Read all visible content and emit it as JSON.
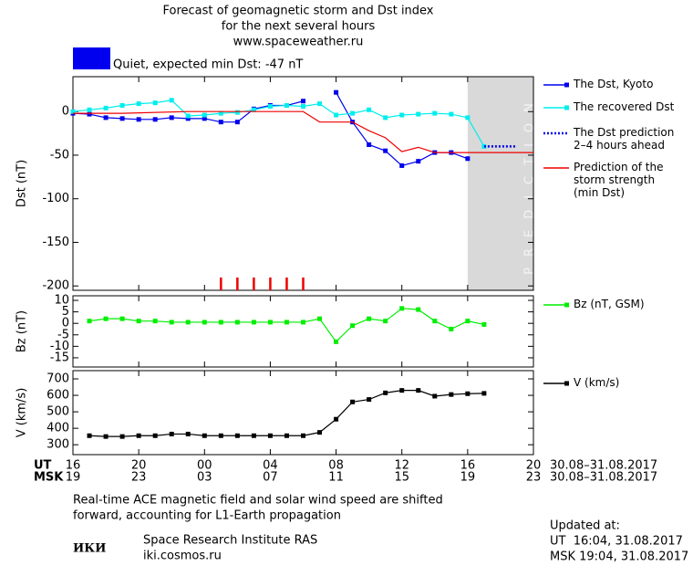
{
  "header": {
    "title_lines": [
      "Forecast of geomagnetic storm and Dst index",
      "for the next several hours",
      "www.spaceweather.ru"
    ],
    "status": "Quiet, expected min Dst: -47 nT",
    "status_color": "#0000ee"
  },
  "chart_data": [
    {
      "type": "line",
      "ylabel": "Dst (nT)",
      "xlim": [
        0,
        28
      ],
      "ylim": [
        -205,
        40
      ],
      "yticks": [
        0,
        -50,
        -100,
        -150,
        -200
      ],
      "prediction_zone": [
        24,
        28
      ],
      "prediction_label": "PREDICTION",
      "storm_marks_x": [
        9,
        10,
        11,
        12,
        13,
        14
      ],
      "storm_marks_color": "#ee0000",
      "series": [
        {
          "name": "The Dst, Kyoto",
          "color": "#0000ee",
          "marker": "square",
          "x": [
            0,
            1,
            2,
            3,
            4,
            5,
            6,
            7,
            8,
            9,
            10,
            11,
            12,
            13,
            14,
            15,
            16,
            17,
            18,
            19,
            20,
            21,
            22,
            23,
            24
          ],
          "values": [
            -2,
            -3,
            -7,
            -8,
            -9,
            -9,
            -7,
            -8,
            -8,
            -12,
            -12,
            3,
            7,
            7,
            12,
            null,
            22,
            -12,
            -38,
            -45,
            -62,
            -57,
            -47,
            -47,
            -54
          ]
        },
        {
          "name": "The recovered Dst",
          "color": "#00eeee",
          "marker": "square",
          "x": [
            0,
            1,
            2,
            3,
            4,
            5,
            6,
            7,
            8,
            9,
            10,
            11,
            12,
            13,
            14,
            15,
            16,
            17,
            18,
            19,
            20,
            21,
            22,
            23,
            24,
            25
          ],
          "values": [
            0,
            2,
            4,
            7,
            9,
            10,
            13,
            -5,
            -4,
            -2,
            -1,
            2,
            6,
            7,
            6,
            9,
            -4,
            -2,
            2,
            -7,
            -4,
            -3,
            -2,
            -3,
            -7,
            -40
          ]
        },
        {
          "name": "The Dst prediction\n2–4 hours ahead",
          "color": "#0000ee",
          "dash": "dotted",
          "x": [
            25,
            27
          ],
          "values": [
            -40,
            -40
          ]
        },
        {
          "name": "Prediction of the\nstorm strength\n(min Dst)",
          "color": "#ee0000",
          "x": [
            0,
            3,
            7,
            14,
            15,
            17,
            18,
            19,
            20,
            21,
            22,
            23,
            24,
            28
          ],
          "values": [
            -2,
            -2,
            0,
            0,
            -12,
            -12,
            -22,
            -30,
            -46,
            -41,
            -47,
            -47,
            -47,
            -47
          ]
        }
      ]
    },
    {
      "type": "line",
      "ylabel": "Bz (nT)",
      "xlim": [
        0,
        28
      ],
      "ylim": [
        -19,
        12
      ],
      "yticks": [
        10,
        5,
        0,
        -5,
        -10,
        -15
      ],
      "series": [
        {
          "name": "Bz (nT, GSM)",
          "color": "#00ee00",
          "marker": "square",
          "x": [
            1,
            2,
            3,
            4,
            5,
            6,
            7,
            8,
            9,
            10,
            11,
            12,
            13,
            14,
            15,
            16,
            17,
            18,
            19,
            20,
            21,
            22,
            23,
            24,
            25
          ],
          "values": [
            1,
            2,
            2,
            1,
            1,
            0.5,
            0.5,
            0.5,
            0.5,
            0.5,
            0.5,
            0.5,
            0.5,
            0.5,
            2,
            -8,
            -1,
            2,
            1,
            6.5,
            6,
            1,
            -2.5,
            1,
            -0.5
          ]
        }
      ]
    },
    {
      "type": "line",
      "ylabel": "V (km/s)",
      "xlim": [
        0,
        28
      ],
      "ylim": [
        240,
        750
      ],
      "yticks": [
        700,
        600,
        500,
        400,
        300
      ],
      "series": [
        {
          "name": "V (km/s)",
          "color": "#000000",
          "marker": "square",
          "x": [
            1,
            2,
            3,
            4,
            5,
            6,
            7,
            8,
            9,
            10,
            11,
            12,
            13,
            14,
            15,
            16,
            17,
            18,
            19,
            20,
            21,
            22,
            23,
            24,
            25
          ],
          "values": [
            355,
            350,
            350,
            355,
            355,
            365,
            365,
            355,
            355,
            355,
            355,
            355,
            355,
            355,
            375,
            455,
            560,
            575,
            615,
            630,
            630,
            595,
            605,
            610,
            612
          ]
        }
      ],
      "xrow_names": [
        "UT",
        "MSK"
      ],
      "date_ranges": [
        "30.08–31.08.2017",
        "30.08–31.08.2017"
      ],
      "xticks": [
        {
          "value": 0,
          "label": "16"
        },
        {
          "value": 4,
          "label": "20"
        },
        {
          "value": 8,
          "label": "00"
        },
        {
          "value": 12,
          "label": "04"
        },
        {
          "value": 16,
          "label": "08"
        },
        {
          "value": 20,
          "label": "12"
        },
        {
          "value": 24,
          "label": "16"
        },
        {
          "value": 28,
          "label": "20"
        }
      ],
      "x2ticks": [
        {
          "value": 0,
          "label": "19"
        },
        {
          "value": 4,
          "label": "23"
        },
        {
          "value": 8,
          "label": "03"
        },
        {
          "value": 12,
          "label": "07"
        },
        {
          "value": 16,
          "label": "11"
        },
        {
          "value": 20,
          "label": "15"
        },
        {
          "value": 24,
          "label": "19"
        },
        {
          "value": 28,
          "label": "23"
        }
      ]
    }
  ],
  "footer": {
    "note_lines": [
      "Real-time ACE magnetic field and solar wind speed are shifted",
      "forward, accounting for L1-Earth propagation"
    ],
    "logo": "ИКИ",
    "institute": "Space Research Institute RAS",
    "site": "iki.cosmos.ru",
    "updated_lines": [
      "Updated at:",
      "UT  16:04, 31.08.2017",
      "MSK 19:04, 31.08.2017"
    ]
  }
}
